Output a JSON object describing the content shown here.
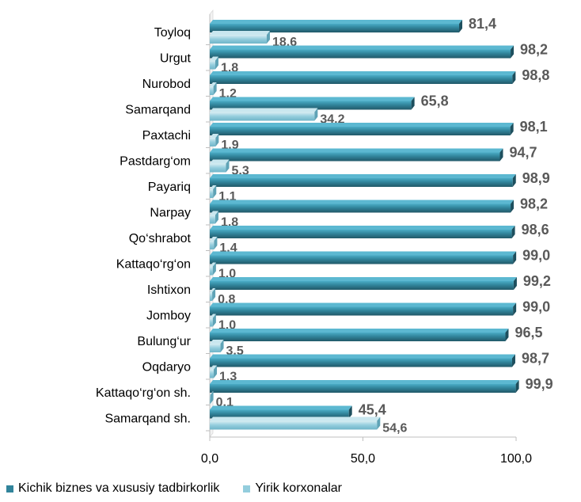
{
  "chart_data": {
    "type": "bar",
    "orientation": "horizontal",
    "categories": [
      "Toyloq",
      "Urgut",
      "Nurobod",
      "Samarqand",
      "Paxtachi",
      "Pastdarg‘om",
      "Payariq",
      "Narpay",
      "Qo‘shrabot",
      "Kattaqo‘rg‘on",
      "Ishtixon",
      "Jomboy",
      "Bulung‘ur",
      "Oqdaryo",
      "Kattaqo‘rg‘on sh.",
      "Samarqand sh."
    ],
    "series": [
      {
        "name": "Kichik biznes va xususiy tadbirkorlik",
        "color": "#31849b",
        "values": [
          81.4,
          98.2,
          98.8,
          65.8,
          98.1,
          94.7,
          98.9,
          98.2,
          98.6,
          99.0,
          99.2,
          99.0,
          96.5,
          98.7,
          99.9,
          45.4
        ],
        "labels": [
          "81,4",
          "98,2",
          "98,8",
          "65,8",
          "98,1",
          "94,7",
          "98,9",
          "98,2",
          "98,6",
          "99,0",
          "99,2",
          "99,0",
          "96,5",
          "98,7",
          "99,9",
          "45,4"
        ]
      },
      {
        "name": "Yirik korxonalar",
        "color": "#93cddd",
        "values": [
          18.6,
          1.8,
          1.2,
          34.2,
          1.9,
          5.3,
          1.1,
          1.8,
          1.4,
          1.0,
          0.8,
          1.0,
          3.5,
          1.3,
          0.1,
          54.6
        ],
        "labels": [
          "18,6",
          "1,8",
          "1,2",
          "34,2",
          "1,9",
          "5,3",
          "1,1",
          "1,8",
          "1,4",
          "1,0",
          "0,8",
          "1,0",
          "3,5",
          "1,3",
          "0,1",
          "54,6"
        ]
      }
    ],
    "xlim": [
      0,
      100
    ],
    "xticks": [
      0,
      50,
      100
    ],
    "xtick_labels": [
      "0,0",
      "50,0",
      "100,0"
    ],
    "legend_position": "bottom-left",
    "grid": false,
    "title": "",
    "xlabel": "",
    "ylabel": ""
  }
}
